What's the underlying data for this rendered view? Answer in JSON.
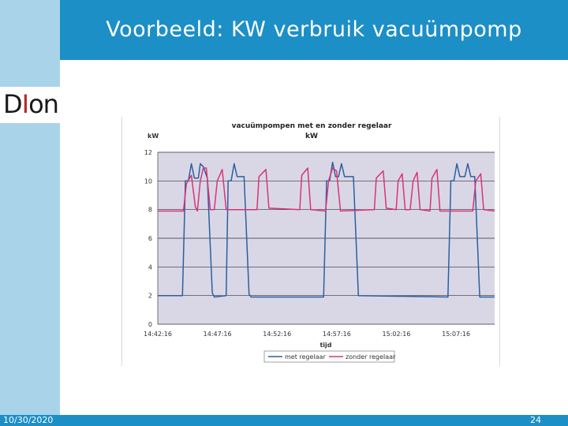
{
  "slide": {
    "title": "Voorbeeld: KW verbruik vacuümpomp",
    "date": "10/30/2020",
    "page": "24",
    "logo": {
      "text_prefix": "D",
      "text_accent": "I",
      "text_suffix": "on"
    },
    "colors": {
      "header": "#1c8fc6",
      "sidebar": "#a9d3e8"
    }
  },
  "chart_data": {
    "type": "line",
    "title": "vacuümpompen met en zonder regelaar",
    "subtitle": "kW",
    "ylabel": "kW",
    "xlabel": "tijd",
    "ylim": [
      0,
      12
    ],
    "yticks": [
      "0",
      "2",
      "4",
      "6",
      "8",
      "10",
      "12"
    ],
    "xticks": [
      "14:42:16",
      "14:47:16",
      "14:52:16",
      "14:57:16",
      "15:02:16",
      "15:07:16"
    ],
    "x_range": [
      "14:42:16",
      "15:10:30"
    ],
    "grid": true,
    "legend_position": "bottom",
    "plot_background": "#d9d7e6",
    "series": [
      {
        "name": "met regelaar",
        "color": "#2c5f9e",
        "points": [
          [
            "14:42:16",
            2.0
          ],
          [
            "14:44:20",
            2.0
          ],
          [
            "14:44:35",
            10.0
          ],
          [
            "14:44:50",
            10.0
          ],
          [
            "14:45:05",
            11.2
          ],
          [
            "14:45:20",
            10.2
          ],
          [
            "14:45:40",
            10.2
          ],
          [
            "14:45:50",
            11.2
          ],
          [
            "14:46:05",
            11.0
          ],
          [
            "14:46:25",
            10.2
          ],
          [
            "14:46:50",
            2.2
          ],
          [
            "14:47:00",
            1.9
          ],
          [
            "14:48:00",
            2.0
          ],
          [
            "14:48:10",
            10.0
          ],
          [
            "14:48:25",
            10.0
          ],
          [
            "14:48:40",
            11.2
          ],
          [
            "14:48:55",
            10.3
          ],
          [
            "14:49:30",
            10.3
          ],
          [
            "14:49:55",
            2.1
          ],
          [
            "14:50:05",
            1.9
          ],
          [
            "14:56:10",
            1.9
          ],
          [
            "14:56:25",
            10.0
          ],
          [
            "14:56:40",
            10.0
          ],
          [
            "14:56:55",
            11.3
          ],
          [
            "14:57:10",
            10.3
          ],
          [
            "14:57:25",
            10.3
          ],
          [
            "14:57:40",
            11.2
          ],
          [
            "14:57:55",
            10.3
          ],
          [
            "14:58:40",
            10.3
          ],
          [
            "14:59:05",
            2.0
          ],
          [
            "15:06:35",
            1.9
          ],
          [
            "15:06:50",
            10.0
          ],
          [
            "15:07:05",
            10.0
          ],
          [
            "15:07:20",
            11.2
          ],
          [
            "15:07:35",
            10.3
          ],
          [
            "15:08:00",
            10.3
          ],
          [
            "15:08:15",
            11.2
          ],
          [
            "15:08:30",
            10.3
          ],
          [
            "15:08:50",
            10.3
          ],
          [
            "15:09:15",
            1.9
          ],
          [
            "15:10:30",
            1.9
          ]
        ]
      },
      {
        "name": "zonder regelaar",
        "color": "#d9337a",
        "points": [
          [
            "14:42:16",
            7.9
          ],
          [
            "14:44:25",
            7.9
          ],
          [
            "14:44:40",
            9.8
          ],
          [
            "14:45:05",
            10.4
          ],
          [
            "14:45:25",
            8.2
          ],
          [
            "14:45:35",
            7.9
          ],
          [
            "14:45:50",
            10.0
          ],
          [
            "14:46:05",
            10.9
          ],
          [
            "14:46:20",
            10.9
          ],
          [
            "14:46:40",
            8.0
          ],
          [
            "14:47:00",
            8.0
          ],
          [
            "14:47:15",
            10.0
          ],
          [
            "14:47:40",
            10.8
          ],
          [
            "14:48:00",
            8.0
          ],
          [
            "14:50:35",
            8.0
          ],
          [
            "14:50:45",
            10.3
          ],
          [
            "14:51:20",
            10.8
          ],
          [
            "14:51:35",
            8.1
          ],
          [
            "14:54:10",
            8.0
          ],
          [
            "14:54:20",
            10.4
          ],
          [
            "14:54:50",
            10.9
          ],
          [
            "14:55:05",
            8.0
          ],
          [
            "14:56:20",
            7.9
          ],
          [
            "14:56:35",
            10.0
          ],
          [
            "14:56:55",
            10.9
          ],
          [
            "14:57:15",
            10.7
          ],
          [
            "14:57:35",
            7.9
          ],
          [
            "15:00:25",
            8.0
          ],
          [
            "15:00:35",
            10.2
          ],
          [
            "15:01:10",
            10.7
          ],
          [
            "15:01:25",
            8.1
          ],
          [
            "15:02:15",
            8.0
          ],
          [
            "15:02:25",
            10.0
          ],
          [
            "15:02:45",
            10.5
          ],
          [
            "15:03:00",
            8.0
          ],
          [
            "15:03:25",
            8.0
          ],
          [
            "15:03:40",
            10.0
          ],
          [
            "15:04:00",
            10.6
          ],
          [
            "15:04:15",
            8.0
          ],
          [
            "15:05:05",
            7.9
          ],
          [
            "15:05:15",
            10.2
          ],
          [
            "15:05:40",
            10.8
          ],
          [
            "15:05:55",
            7.9
          ],
          [
            "15:08:40",
            7.9
          ],
          [
            "15:08:55",
            10.0
          ],
          [
            "15:09:20",
            10.5
          ],
          [
            "15:09:35",
            8.0
          ],
          [
            "15:10:30",
            7.9
          ]
        ]
      }
    ]
  }
}
